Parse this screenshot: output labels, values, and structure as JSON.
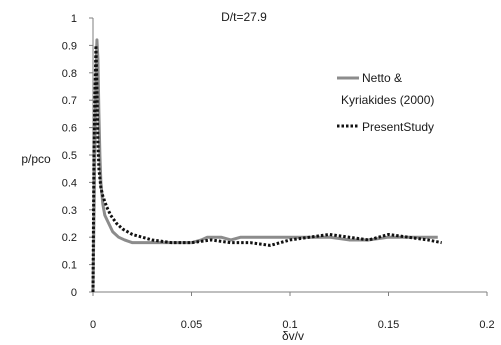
{
  "chart_data": {
    "type": "line",
    "title": "D/t=27.9",
    "xlabel": "δv/v",
    "ylabel": "p/pco",
    "xlim": [
      0,
      0.2
    ],
    "ylim": [
      0,
      1
    ],
    "x_ticks": [
      "0",
      "0.05",
      "0.1",
      "0.15",
      "0.2"
    ],
    "y_ticks": [
      "0",
      "0.1",
      "0.2",
      "0.3",
      "0.4",
      "0.5",
      "0.6",
      "0.7",
      "0.8",
      "0.9",
      "1"
    ],
    "grid": false,
    "legend_position": "right",
    "series": [
      {
        "name": "Netto & Kyriakides (2000)",
        "color": "#8c8c8c",
        "style": "solid",
        "x": [
          0.0,
          0.0008,
          0.0015,
          0.002,
          0.0025,
          0.003,
          0.0035,
          0.004,
          0.005,
          0.006,
          0.008,
          0.01,
          0.013,
          0.016,
          0.02,
          0.025,
          0.03,
          0.04,
          0.05,
          0.055,
          0.058,
          0.06,
          0.065,
          0.07,
          0.075,
          0.08,
          0.09,
          0.1,
          0.11,
          0.12,
          0.13,
          0.14,
          0.15,
          0.16,
          0.17,
          0.175
        ],
        "y": [
          0.0,
          0.45,
          0.8,
          0.92,
          0.85,
          0.65,
          0.5,
          0.4,
          0.32,
          0.28,
          0.25,
          0.22,
          0.2,
          0.19,
          0.18,
          0.18,
          0.18,
          0.18,
          0.18,
          0.19,
          0.2,
          0.2,
          0.2,
          0.19,
          0.2,
          0.2,
          0.2,
          0.2,
          0.2,
          0.2,
          0.19,
          0.19,
          0.2,
          0.2,
          0.2,
          0.2
        ]
      },
      {
        "name": "PresentStudy",
        "color": "#111111",
        "style": "dotted",
        "x": [
          0.0,
          0.0005,
          0.001,
          0.0015,
          0.002,
          0.0025,
          0.003,
          0.004,
          0.005,
          0.007,
          0.009,
          0.012,
          0.015,
          0.02,
          0.025,
          0.03,
          0.04,
          0.05,
          0.06,
          0.07,
          0.08,
          0.09,
          0.1,
          0.11,
          0.12,
          0.13,
          0.14,
          0.15,
          0.16,
          0.17,
          0.177
        ],
        "y": [
          0.0,
          0.52,
          0.72,
          0.9,
          0.75,
          0.55,
          0.45,
          0.38,
          0.35,
          0.31,
          0.28,
          0.25,
          0.23,
          0.21,
          0.2,
          0.19,
          0.18,
          0.18,
          0.19,
          0.18,
          0.18,
          0.17,
          0.19,
          0.2,
          0.21,
          0.2,
          0.19,
          0.21,
          0.2,
          0.19,
          0.18
        ]
      }
    ]
  }
}
